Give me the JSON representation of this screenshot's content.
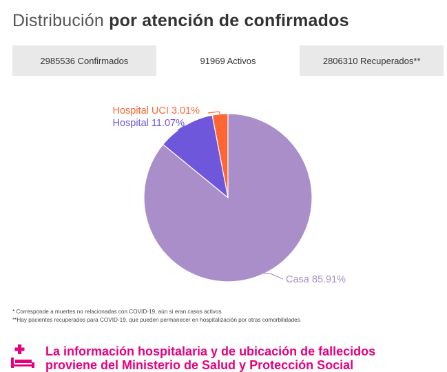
{
  "title": {
    "light": "Distribución",
    "bold": "por atención de confirmados"
  },
  "tabs": [
    {
      "label": "2985536 Confirmados",
      "active": false
    },
    {
      "label": "91969 Activos",
      "active": true
    },
    {
      "label": "2806310 Recuperados**",
      "active": false
    }
  ],
  "chart_data": {
    "type": "pie",
    "slices": [
      {
        "label": "Hospital UCI 3.01%",
        "value": 3.01,
        "color": "#ff6633"
      },
      {
        "label": "Hospital 11.07%",
        "value": 11.07,
        "color": "#6f57dc"
      },
      {
        "label": "Casa 85.91%",
        "value": 85.91,
        "color": "#a98ec9"
      }
    ]
  },
  "notes": [
    "* Corresponde a muertes no relacionadas con COVID-19, aún si eran casos activos",
    "**Hay pacientes recuperados para COVID-19, que pueden permanecer en hospitalización por otras comorbilidades"
  ],
  "footer": {
    "line1": "La información hospitalaria y de ubicación de fallecidos",
    "line2": "proviene del Ministerio de Salud y Protección Social",
    "accent": "#e6007e"
  }
}
